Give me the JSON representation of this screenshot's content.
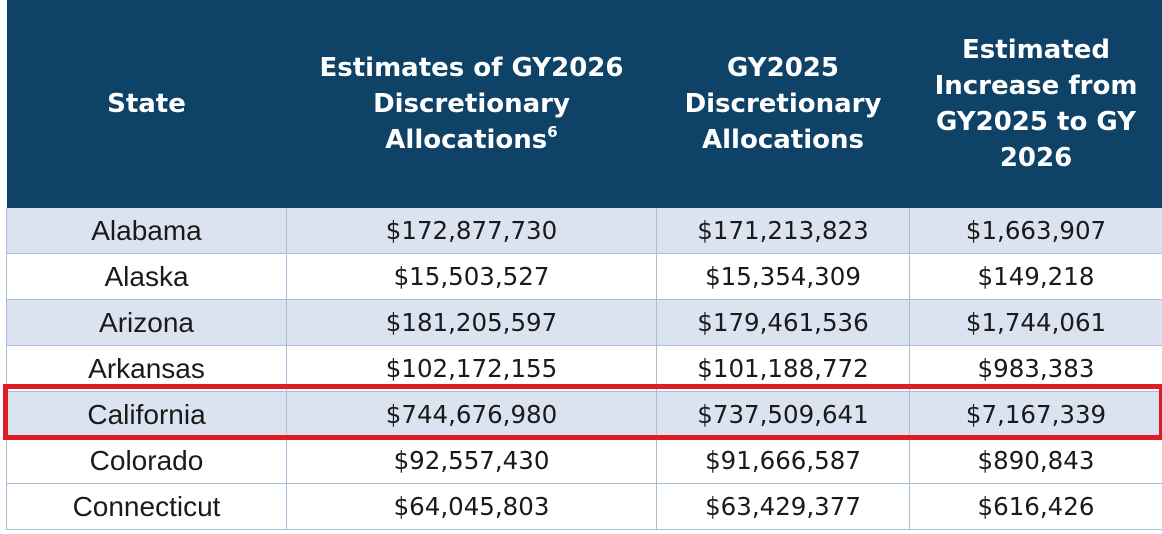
{
  "table": {
    "headers": [
      {
        "text": "State",
        "sup": ""
      },
      {
        "text": "Estimates of GY2026 Discretionary Allocations",
        "sup": "6"
      },
      {
        "text": "GY2025 Discretionary Allocations",
        "sup": ""
      },
      {
        "text": "Estimated Increase from GY2025 to GY 2026",
        "sup": ""
      }
    ],
    "rows": [
      {
        "state": "Alabama",
        "gy2026": "$172,877,730",
        "gy2025": "$171,213,823",
        "increase": "$1,663,907"
      },
      {
        "state": "Alaska",
        "gy2026": "$15,503,527",
        "gy2025": "$15,354,309",
        "increase": "$149,218"
      },
      {
        "state": "Arizona",
        "gy2026": "$181,205,597",
        "gy2025": "$179,461,536",
        "increase": "$1,744,061"
      },
      {
        "state": "Arkansas",
        "gy2026": "$102,172,155",
        "gy2025": "$101,188,772",
        "increase": "$983,383"
      },
      {
        "state": "California",
        "gy2026": "$744,676,980",
        "gy2025": "$737,509,641",
        "increase": "$7,167,339"
      },
      {
        "state": "Colorado",
        "gy2026": "$92,557,430",
        "gy2025": "$91,666,587",
        "increase": "$890,843"
      },
      {
        "state": "Connecticut",
        "gy2026": "$64,045,803",
        "gy2025": "$63,429,377",
        "increase": "$616,426"
      }
    ]
  },
  "highlight": {
    "row_state": "California",
    "color": "#dd1c24"
  },
  "colors": {
    "header_bg": "#0e4266",
    "header_text": "#ffffff",
    "stripe_bg": "#dce3f0",
    "grid": "#a9bfd9"
  }
}
